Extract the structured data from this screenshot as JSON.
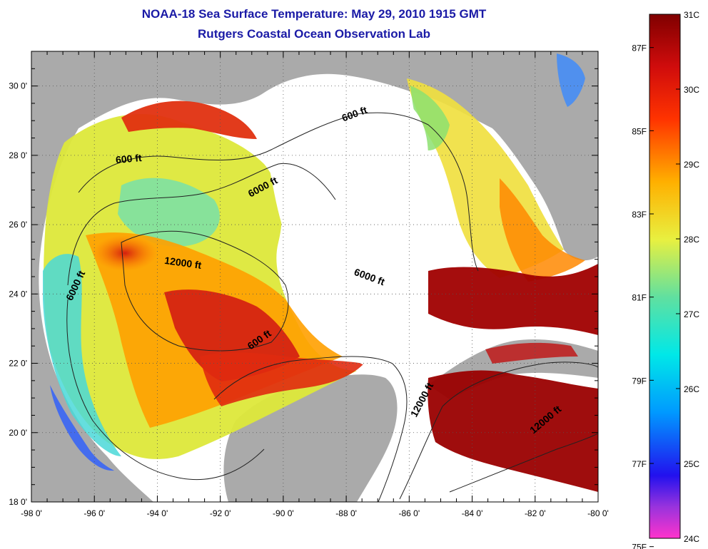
{
  "title_line1": "NOAA-18 Sea Surface Temperature:  May 29, 2010 1915 GMT",
  "title_line2": "Rutgers Coastal Ocean Observation Lab",
  "lat_ticks": [
    "30 0'",
    "28 0'",
    "26 0'",
    "24 0'",
    "22 0'",
    "20 0'",
    "18 0'"
  ],
  "lat_values": [
    30,
    28,
    26,
    24,
    22,
    20,
    18
  ],
  "lon_ticks": [
    "-98 0'",
    "-96 0'",
    "-94 0'",
    "-92 0'",
    "-90 0'",
    "-88 0'",
    "-86 0'",
    "-84 0'",
    "-82 0'",
    "-80 0'"
  ],
  "lon_values": [
    -98,
    -96,
    -94,
    -92,
    -90,
    -88,
    -86,
    -84,
    -82,
    -80
  ],
  "contour_labels": [
    {
      "text": "600 ft",
      "lon": -94.9,
      "lat": 27.8,
      "angle": -5
    },
    {
      "text": "600 ft",
      "lon": -87.7,
      "lat": 29.1,
      "angle": -20
    },
    {
      "text": "6000 ft",
      "lon": -90.6,
      "lat": 27.0,
      "angle": -28
    },
    {
      "text": "12000 ft",
      "lon": -93.2,
      "lat": 24.8,
      "angle": 8
    },
    {
      "text": "6000 ft",
      "lon": -87.3,
      "lat": 24.4,
      "angle": 20
    },
    {
      "text": "6000 ft",
      "lon": -96.5,
      "lat": 24.2,
      "angle": -65
    },
    {
      "text": "600 ft",
      "lon": -90.7,
      "lat": 22.6,
      "angle": -35
    },
    {
      "text": "12000 ft",
      "lon": -85.5,
      "lat": 20.9,
      "angle": -62
    },
    {
      "text": "12000 ft",
      "lon": -81.6,
      "lat": 20.3,
      "angle": -40
    }
  ],
  "colorbar": {
    "celsius_labels": [
      "31C",
      "30C",
      "29C",
      "28C",
      "27C",
      "26C",
      "25C",
      "24C"
    ],
    "fahrenheit_labels": [
      "87F",
      "85F",
      "83F",
      "81F",
      "79F",
      "77F",
      "75F"
    ],
    "fahrenheit_values": [
      87,
      85,
      83,
      81,
      79,
      77,
      75
    ],
    "celsius_range": [
      24,
      31
    ],
    "colors": [
      "#ff33cc",
      "#3322ee",
      "#00aaff",
      "#00e8e8",
      "#40e0a0",
      "#e8f040",
      "#ffaa00",
      "#ff3300",
      "#e01010",
      "#8b0000"
    ]
  },
  "colors": {
    "land": "#aaaaaa",
    "title": "#1a1aa6",
    "nodata": "#ffffff"
  }
}
